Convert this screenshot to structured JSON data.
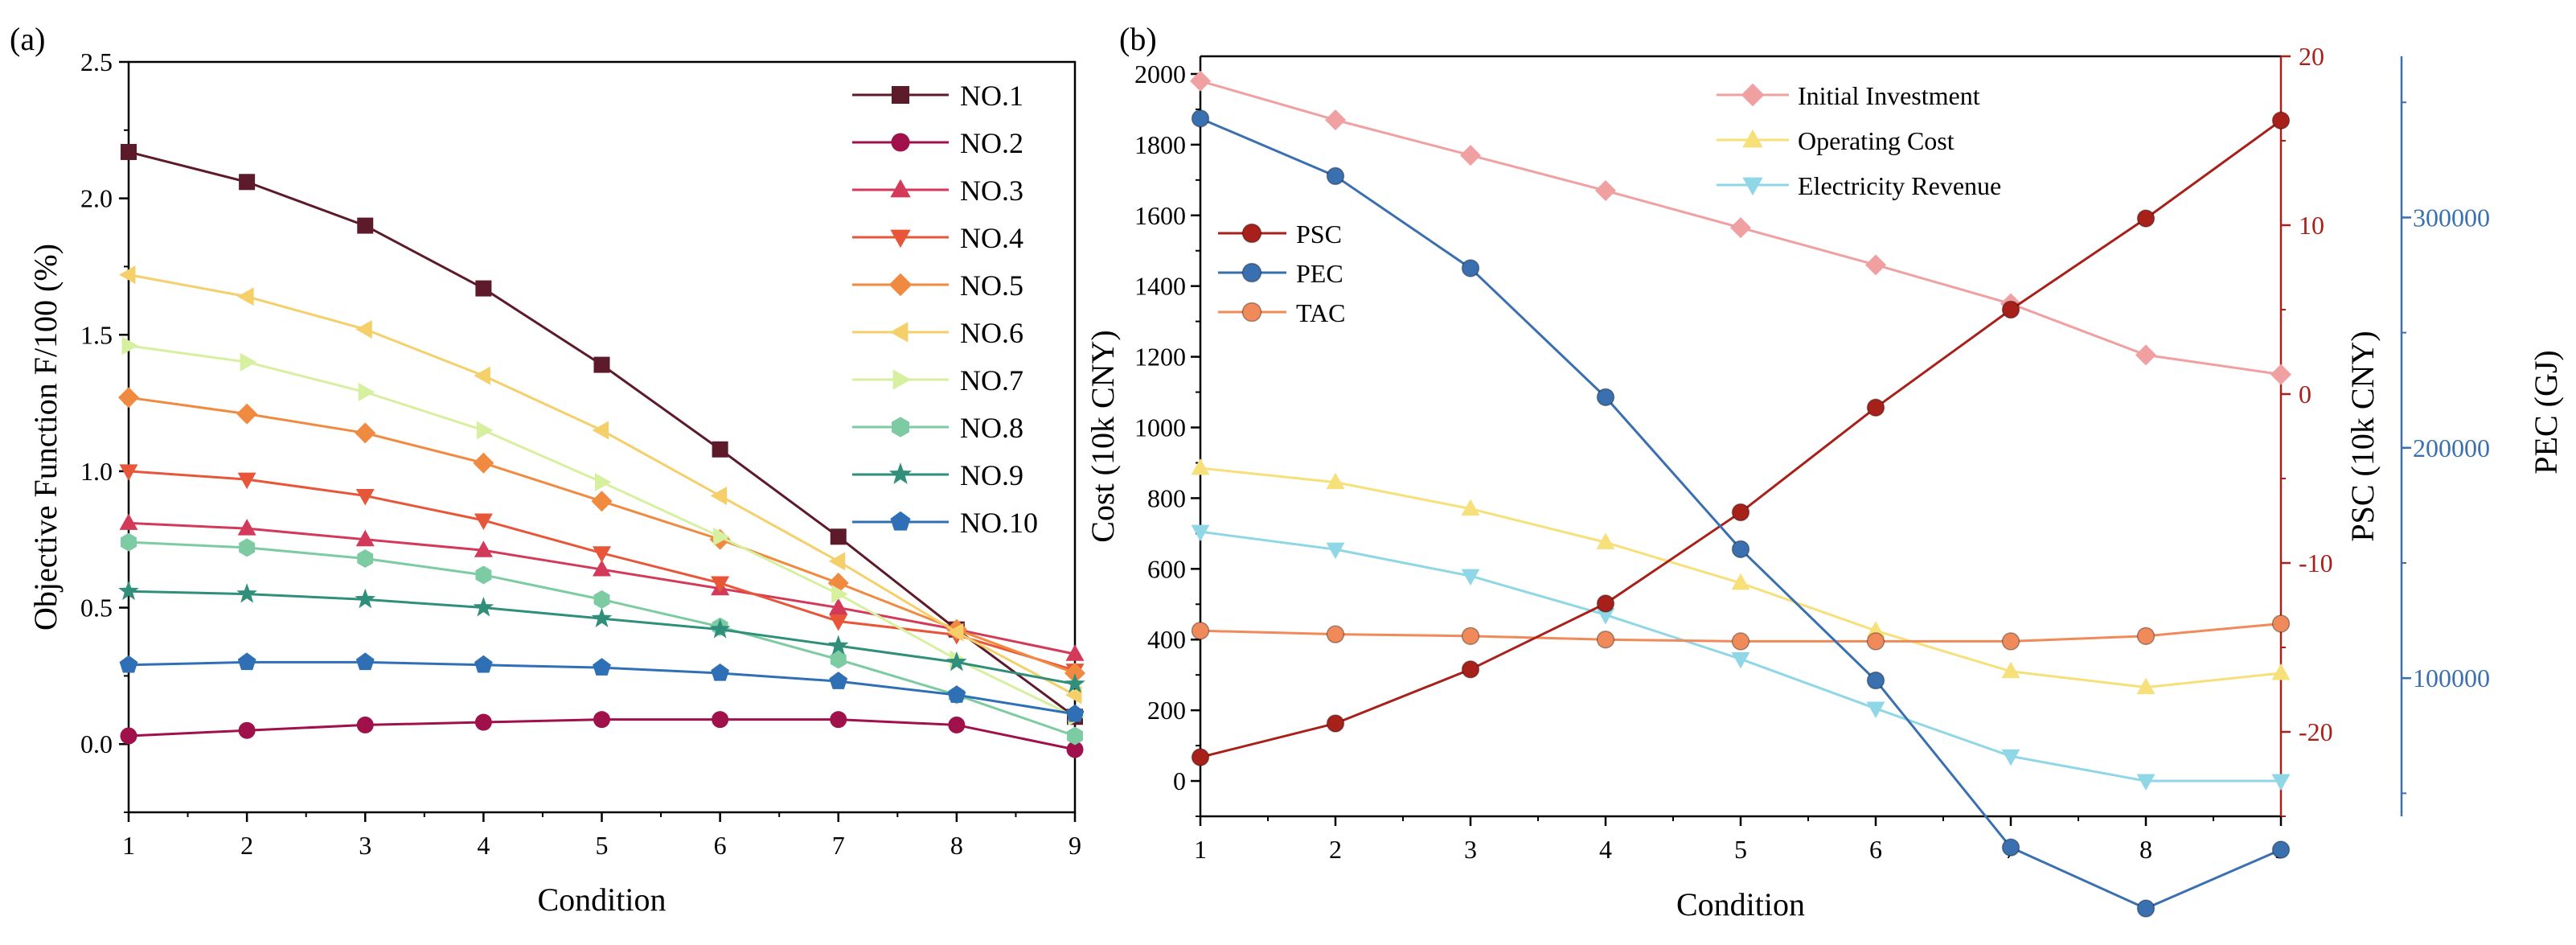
{
  "figure": {
    "panel_a_label": "(a)",
    "panel_b_label": "(b)"
  },
  "chart_data": [
    {
      "type": "line",
      "panel": "(a)",
      "xlabel": "Condition",
      "ylabel": "Objective Function F/100 (%)",
      "x": [
        1,
        2,
        3,
        4,
        5,
        6,
        7,
        8,
        9
      ],
      "xlim": [
        1,
        9
      ],
      "ylim": [
        -0.25,
        2.5
      ],
      "yticks": [
        "0.0",
        "0.5",
        "1.0",
        "1.5",
        "2.0",
        "2.5"
      ],
      "xticks": [
        "1",
        "2",
        "3",
        "4",
        "5",
        "6",
        "7",
        "8",
        "9"
      ],
      "legend_position": "top-right",
      "series": [
        {
          "name": "NO.1",
          "color": "#5c1a2a",
          "marker": "square",
          "values": [
            2.17,
            2.06,
            1.9,
            1.67,
            1.39,
            1.08,
            0.76,
            0.42,
            0.1
          ]
        },
        {
          "name": "NO.2",
          "color": "#a0104a",
          "marker": "circle",
          "values": [
            0.03,
            0.05,
            0.07,
            0.08,
            0.09,
            0.09,
            0.09,
            0.07,
            -0.02
          ]
        },
        {
          "name": "NO.3",
          "color": "#d33a5a",
          "marker": "triangle-up",
          "values": [
            0.81,
            0.79,
            0.75,
            0.71,
            0.64,
            0.57,
            0.5,
            0.42,
            0.33
          ]
        },
        {
          "name": "NO.4",
          "color": "#e8563a",
          "marker": "triangle-down",
          "values": [
            1.0,
            0.97,
            0.91,
            0.82,
            0.7,
            0.59,
            0.45,
            0.4,
            0.27
          ]
        },
        {
          "name": "NO.5",
          "color": "#f08a40",
          "marker": "diamond",
          "values": [
            1.27,
            1.21,
            1.14,
            1.03,
            0.89,
            0.75,
            0.59,
            0.42,
            0.26
          ]
        },
        {
          "name": "NO.6",
          "color": "#f5cf6a",
          "marker": "triangle-left",
          "values": [
            1.72,
            1.64,
            1.52,
            1.35,
            1.15,
            0.91,
            0.67,
            0.41,
            0.18
          ]
        },
        {
          "name": "NO.7",
          "color": "#d6f0a0",
          "marker": "triangle-right",
          "values": [
            1.46,
            1.4,
            1.29,
            1.15,
            0.96,
            0.76,
            0.55,
            0.31,
            0.1
          ]
        },
        {
          "name": "NO.8",
          "color": "#7ccba2",
          "marker": "hexagon",
          "values": [
            0.74,
            0.72,
            0.68,
            0.62,
            0.53,
            0.43,
            0.31,
            0.18,
            0.03
          ]
        },
        {
          "name": "NO.9",
          "color": "#2f8f7a",
          "marker": "star",
          "values": [
            0.56,
            0.55,
            0.53,
            0.5,
            0.46,
            0.42,
            0.36,
            0.3,
            0.22
          ]
        },
        {
          "name": "NO.10",
          "color": "#2f6fb5",
          "marker": "pentagon",
          "values": [
            0.29,
            0.3,
            0.3,
            0.29,
            0.28,
            0.26,
            0.23,
            0.18,
            0.11
          ]
        }
      ]
    },
    {
      "type": "line",
      "panel": "(b)",
      "xlabel": "Condition",
      "ylabel_left": "Cost (10k CNY)",
      "ylabel_right": "PSC (10k CNY)",
      "ylabel_far_right": "PEC (GJ)",
      "x": [
        1,
        2,
        3,
        4,
        5,
        6,
        7,
        8,
        9
      ],
      "xlim": [
        1,
        9
      ],
      "ylim_left": [
        -100,
        2050
      ],
      "yticks_left": [
        "0",
        "200",
        "400",
        "600",
        "800",
        "1000",
        "1200",
        "1400",
        "1600",
        "1800",
        "2000"
      ],
      "ylim_right": [
        -25,
        20
      ],
      "yticks_right": [
        "-20",
        "-10",
        "0",
        "10",
        "20"
      ],
      "ylim_far_right": [
        40000,
        370000
      ],
      "yticks_far_right": [
        "100000",
        "200000",
        "300000"
      ],
      "xticks": [
        "1",
        "2",
        "3",
        "4",
        "5",
        "6",
        "7",
        "8",
        "9"
      ],
      "legend_top": [
        {
          "name": "Initial Investment",
          "color": "#f0a0a0",
          "marker": "diamond"
        },
        {
          "name": "Operating Cost",
          "color": "#f7df7a",
          "marker": "triangle-up"
        },
        {
          "name": "Electricity Revenue",
          "color": "#8fd7e6",
          "marker": "triangle-down"
        }
      ],
      "legend_left": [
        {
          "name": "PSC",
          "color": "#a8201a",
          "marker": "sphere"
        },
        {
          "name": "PEC",
          "color": "#3a6fb0",
          "marker": "sphere"
        },
        {
          "name": "TAC",
          "color": "#f08a5a",
          "marker": "sphere"
        }
      ],
      "series": [
        {
          "name": "Initial Investment",
          "axis": "left",
          "values": [
            1980,
            1870,
            1770,
            1670,
            1565,
            1460,
            1350,
            1205,
            1150
          ]
        },
        {
          "name": "Operating Cost",
          "axis": "left",
          "values": [
            885,
            845,
            770,
            675,
            560,
            425,
            310,
            265,
            305
          ]
        },
        {
          "name": "Electricity Revenue",
          "axis": "left",
          "values": [
            705,
            655,
            580,
            470,
            345,
            205,
            70,
            0,
            0
          ]
        },
        {
          "name": "TAC",
          "axis": "left",
          "values": [
            425,
            415,
            410,
            400,
            395,
            395,
            395,
            410,
            445
          ]
        },
        {
          "name": "PSC",
          "axis": "right",
          "values": [
            -21.5,
            -19.5,
            -16.3,
            -12.4,
            -7.0,
            -0.8,
            5.0,
            10.4,
            16.2
          ]
        },
        {
          "name": "PEC",
          "axis": "far_right",
          "values": [
            343000,
            318000,
            278000,
            222000,
            156000,
            99000,
            26500,
            0,
            25500
          ]
        }
      ]
    }
  ]
}
